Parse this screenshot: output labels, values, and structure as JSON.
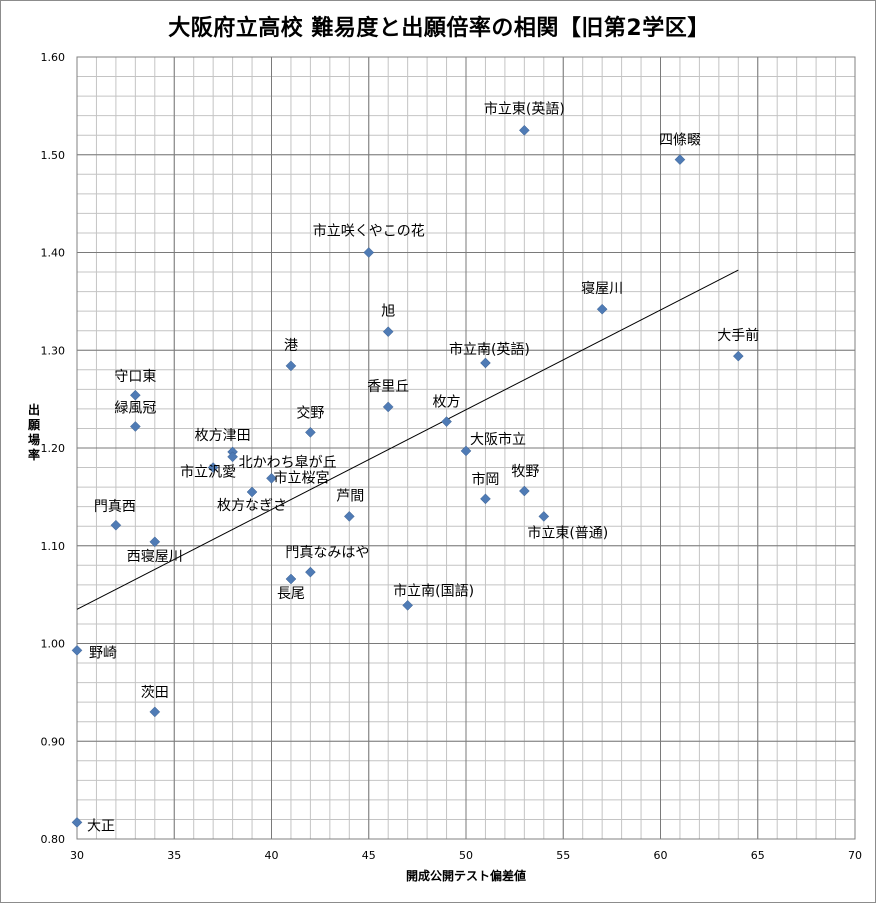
{
  "chart_data": {
    "type": "scatter",
    "title": "大阪府立高校 難易度と出願倍率の相関【旧第2学区】",
    "xlabel": "開成公開テスト偏差値",
    "ylabel": "出願場率",
    "xlim": [
      30,
      70
    ],
    "ylim": [
      0.8,
      1.6
    ],
    "xticks": [
      30,
      35,
      40,
      45,
      50,
      55,
      60,
      65,
      70
    ],
    "yticks": [
      0.8,
      0.9,
      1.0,
      1.1,
      1.2,
      1.3,
      1.4,
      1.5,
      1.6
    ],
    "xtick_labels": [
      "30",
      "35",
      "40",
      "45",
      "50",
      "55",
      "60",
      "65",
      "70"
    ],
    "ytick_labels": [
      "0.80",
      "0.90",
      "1.00",
      "1.10",
      "1.20",
      "1.30",
      "1.40",
      "1.50",
      "1.60"
    ],
    "minor_grid_step": {
      "x": 1,
      "y": 0.02
    },
    "grid": true,
    "marker_color": "#4F7BB5",
    "trendline": {
      "type": "linear",
      "x": [
        30,
        64
      ],
      "y": [
        1.035,
        1.382
      ]
    },
    "points": [
      {
        "name": "市立東(英語)",
        "x": 53,
        "y": 1.525
      },
      {
        "name": "四條畷",
        "x": 61,
        "y": 1.495
      },
      {
        "name": "市立咲くやこの花",
        "x": 45,
        "y": 1.4
      },
      {
        "name": "寝屋川",
        "x": 57,
        "y": 1.342
      },
      {
        "name": "旭",
        "x": 46,
        "y": 1.319
      },
      {
        "name": "大手前",
        "x": 64,
        "y": 1.294
      },
      {
        "name": "市立南(英語)",
        "x": 51,
        "y": 1.287
      },
      {
        "name": "港",
        "x": 41,
        "y": 1.284
      },
      {
        "name": "守口東",
        "x": 33,
        "y": 1.254
      },
      {
        "name": "香里丘",
        "x": 46,
        "y": 1.242
      },
      {
        "name": "枚方",
        "x": 49,
        "y": 1.227
      },
      {
        "name": "緑風冠",
        "x": 33,
        "y": 1.222
      },
      {
        "name": "交野",
        "x": 42,
        "y": 1.216
      },
      {
        "name": "枚方津田",
        "x": 38,
        "y": 1.196
      },
      {
        "name": "大阪市立",
        "x": 50,
        "y": 1.197
      },
      {
        "name": "北かわち皐が丘",
        "x": 38,
        "y": 1.191
      },
      {
        "name": "市立汎愛",
        "x": 37,
        "y": 1.18
      },
      {
        "name": "市立桜宮",
        "x": 40,
        "y": 1.169
      },
      {
        "name": "牧野",
        "x": 53,
        "y": 1.156
      },
      {
        "name": "枚方なぎさ",
        "x": 39,
        "y": 1.155
      },
      {
        "name": "市岡",
        "x": 51,
        "y": 1.148
      },
      {
        "name": "芦間",
        "x": 44,
        "y": 1.13
      },
      {
        "name": "市立東(普通)",
        "x": 54,
        "y": 1.13
      },
      {
        "name": "門真西",
        "x": 32,
        "y": 1.121
      },
      {
        "name": "西寝屋川",
        "x": 34,
        "y": 1.104
      },
      {
        "name": "門真なみはや",
        "x": 42,
        "y": 1.073
      },
      {
        "name": "長尾",
        "x": 41,
        "y": 1.066
      },
      {
        "name": "市立南(国語)",
        "x": 47,
        "y": 1.039
      },
      {
        "name": "野崎",
        "x": 30,
        "y": 0.993
      },
      {
        "name": "茨田",
        "x": 34,
        "y": 0.93
      },
      {
        "name": "大正",
        "x": 30,
        "y": 0.817
      }
    ]
  }
}
